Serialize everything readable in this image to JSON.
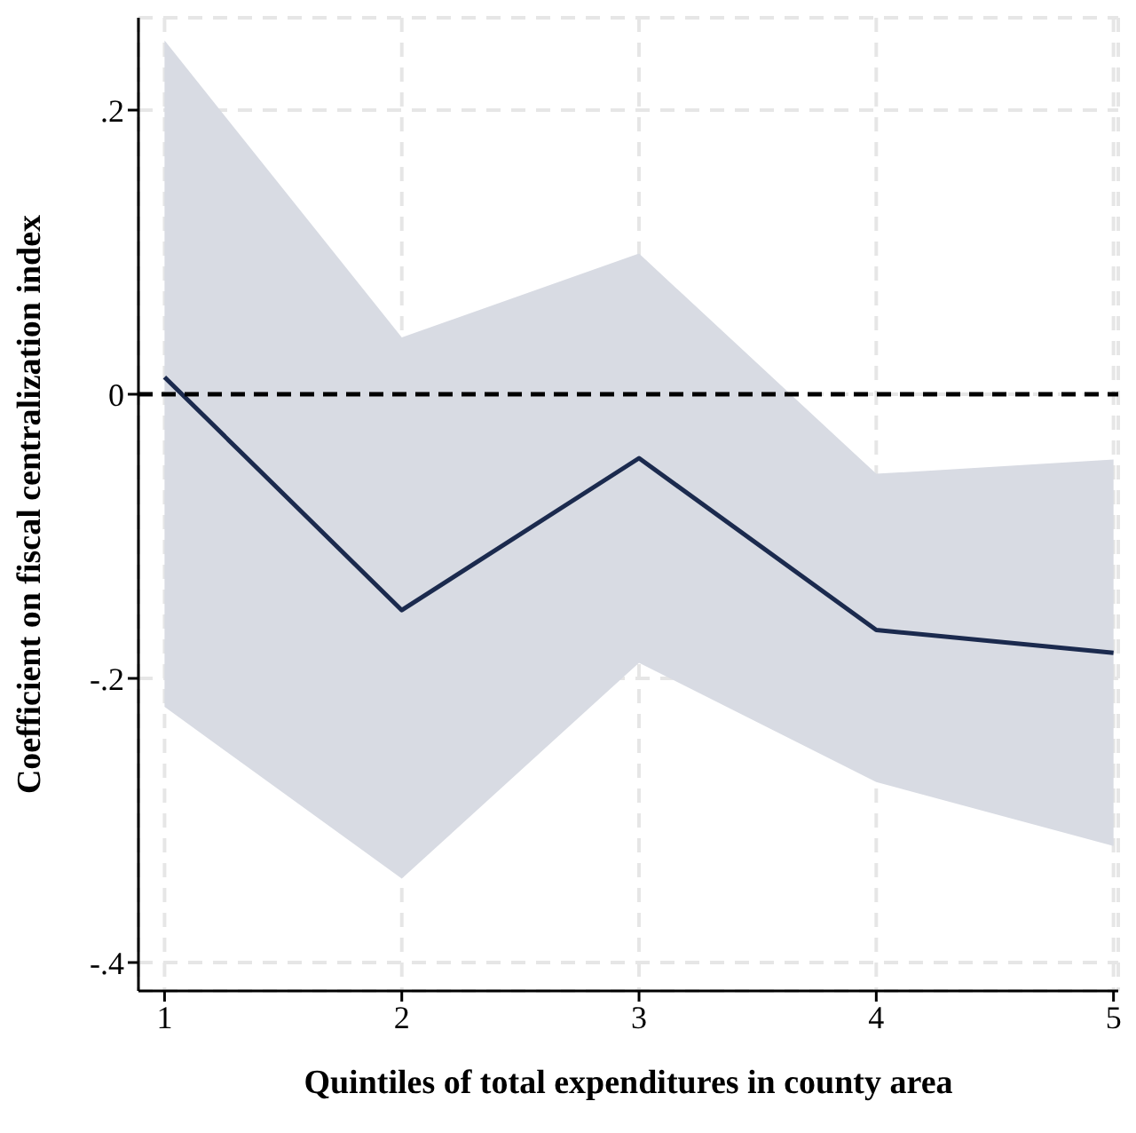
{
  "chart_data": {
    "type": "line",
    "xlabel": "Quintiles of total expenditures in county area",
    "ylabel": "Coefficient on fiscal centralization index",
    "x": [
      1,
      2,
      3,
      4,
      5
    ],
    "series": [
      {
        "color": "#1b2a4e",
        "values": [
          0.012,
          -0.152,
          -0.045,
          -0.166,
          -0.182
        ],
        "lower": [
          -0.22,
          -0.341,
          -0.189,
          -0.273,
          -0.318
        ],
        "upper": [
          0.249,
          0.04,
          0.099,
          -0.056,
          -0.046
        ]
      }
    ],
    "xlim": [
      0.89,
      5.02
    ],
    "xticks": [
      1,
      2,
      3,
      4,
      5
    ],
    "ylim": [
      -0.42,
      0.265
    ],
    "yticks": [
      {
        "value": -0.4,
        "label": "-.4"
      },
      {
        "value": -0.2,
        "label": "-.2"
      },
      {
        "value": 0,
        "label": "0"
      },
      {
        "value": 0.2,
        "label": ".2"
      }
    ],
    "grid": true,
    "marker": "none",
    "line_style": "solid",
    "legend": false,
    "ref_lines": [
      {
        "axis": "y",
        "value": 0,
        "color": "#000000",
        "line_style": "dashed"
      }
    ]
  }
}
